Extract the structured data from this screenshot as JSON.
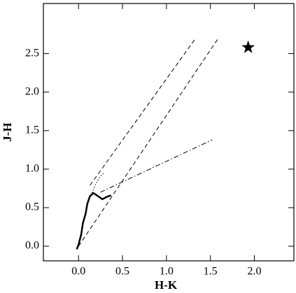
{
  "chart_data": {
    "type": "line",
    "x_label": "H-K",
    "y_label": "J-H",
    "xlim": [
      -0.4,
      2.45
    ],
    "ylim": [
      -0.19,
      3.15
    ],
    "xticks": [
      {
        "value": 0,
        "label": "0.0"
      },
      0.5,
      {
        "value": 1,
        "label": "1.0"
      },
      1.5,
      {
        "value": 2,
        "label": "2.0"
      }
    ],
    "yticks": [
      {
        "value": 0,
        "label": "0.0"
      },
      0.5,
      {
        "value": 1,
        "label": "1.0"
      },
      1.5,
      {
        "value": 2,
        "label": "2.0"
      },
      2.5
    ],
    "series": [
      {
        "style": "solid",
        "color": "#000000",
        "width": 2.5,
        "x": [
          -0.02,
          0.0,
          0.03,
          0.05,
          0.08,
          0.1,
          0.13,
          0.17,
          0.22,
          0.27,
          0.32,
          0.37
        ],
        "values": [
          -0.04,
          0.02,
          0.15,
          0.3,
          0.42,
          0.55,
          0.65,
          0.69,
          0.65,
          0.61,
          0.64,
          0.66
        ]
      },
      {
        "style": "dotted",
        "color": "#000000",
        "width": 1,
        "x": [
          0.15,
          0.2,
          0.25,
          0.29
        ],
        "values": [
          0.69,
          0.82,
          0.91,
          0.95
        ]
      },
      {
        "style": "dashed",
        "color": "#000000",
        "width": 1,
        "x": [
          0.13,
          1.32
        ],
        "values": [
          0.79,
          2.68
        ]
      },
      {
        "style": "dashed",
        "color": "#000000",
        "width": 1,
        "x": [
          0.0,
          1.59
        ],
        "values": [
          0.0,
          2.7
        ]
      },
      {
        "style": "dashdot",
        "color": "#000000",
        "width": 1,
        "x": [
          0.25,
          1.52
        ],
        "values": [
          0.7,
          1.38
        ]
      },
      {
        "style": "star",
        "color": "#000000",
        "width": 1,
        "x": [
          1.93
        ],
        "values": [
          2.58
        ]
      }
    ]
  }
}
